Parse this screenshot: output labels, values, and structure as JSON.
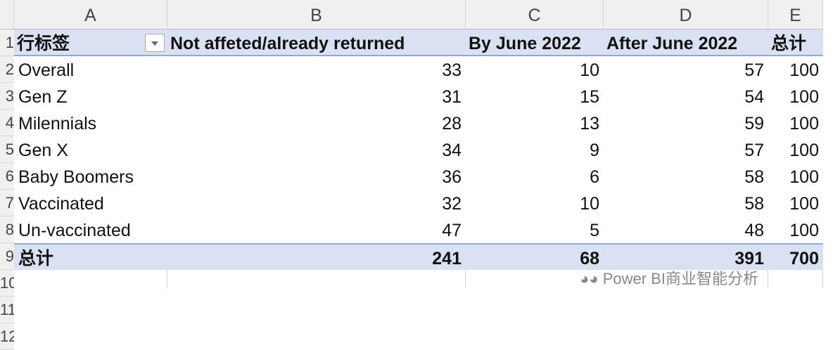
{
  "columns": [
    "A",
    "B",
    "C",
    "D",
    "E"
  ],
  "row_numbers": [
    "1",
    "2",
    "3",
    "4",
    "5",
    "6",
    "7",
    "8",
    "9",
    "10",
    "11",
    "12"
  ],
  "header": {
    "row_label": "行标签",
    "cols": [
      "Not affeted/already returned",
      "By June 2022",
      "After June 2022",
      "总计"
    ]
  },
  "rows": [
    {
      "label": "Overall",
      "values": [
        "33",
        "10",
        "57",
        "100"
      ]
    },
    {
      "label": "Gen Z",
      "values": [
        "31",
        "15",
        "54",
        "100"
      ]
    },
    {
      "label": "Milennials",
      "values": [
        "28",
        "13",
        "59",
        "100"
      ]
    },
    {
      "label": "Gen X",
      "values": [
        "34",
        "9",
        "57",
        "100"
      ]
    },
    {
      "label": "Baby Boomers",
      "values": [
        "36",
        "6",
        "58",
        "100"
      ]
    },
    {
      "label": "Vaccinated",
      "values": [
        "32",
        "10",
        "58",
        "100"
      ]
    },
    {
      "label": "Un-vaccinated",
      "values": [
        "47",
        "5",
        "48",
        "100"
      ]
    }
  ],
  "total": {
    "label": "总计",
    "values": [
      "241",
      "68",
      "391",
      "700"
    ]
  },
  "watermark": "Power BI商业智能分析",
  "colors": {
    "header_fill": "#d9e1f2",
    "border": "#8ea9db"
  }
}
